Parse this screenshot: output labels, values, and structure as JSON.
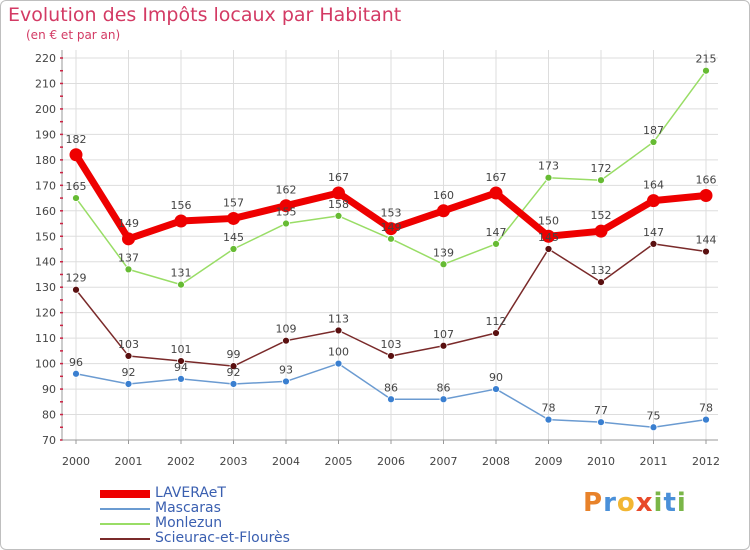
{
  "title": "Evolution des Impôts locaux par Habitant",
  "subtitle": "(en € et par an)",
  "logo": {
    "letters": [
      "P",
      "r",
      "o",
      "x",
      "i",
      "t",
      "i"
    ],
    "colors": [
      "#e8822a",
      "#4a90d9",
      "#f2b632",
      "#e84a2a",
      "#7ab648",
      "#4a90d9",
      "#7ab648"
    ]
  },
  "chart_data": {
    "type": "line",
    "title": "Evolution des Impôts locaux par Habitant",
    "subtitle": "(en € et par an)",
    "categories": [
      "2000",
      "2001",
      "2002",
      "2003",
      "2004",
      "2005",
      "2006",
      "2007",
      "2008",
      "2009",
      "2010",
      "2011",
      "2012"
    ],
    "ylim": [
      70,
      220
    ],
    "yticks": [
      70,
      80,
      90,
      100,
      110,
      120,
      130,
      140,
      150,
      160,
      170,
      180,
      190,
      200,
      210,
      220
    ],
    "xlabel": "",
    "ylabel": "",
    "grid": true,
    "legend_position": "bottom-left",
    "series": [
      {
        "name": "LAVERAeT",
        "color": "#ee0000",
        "markerColor": "#ee0000",
        "stroke": 7,
        "marker": 6.5,
        "values": [
          182,
          149,
          156,
          157,
          162,
          167,
          153,
          160,
          167,
          150,
          152,
          164,
          166
        ]
      },
      {
        "name": "Mascaras",
        "color": "#6b9bd1",
        "markerColor": "#3a7fd0",
        "stroke": 1.5,
        "marker": 3.5,
        "values": [
          96,
          92,
          94,
          92,
          93,
          100,
          86,
          86,
          90,
          78,
          77,
          75,
          78
        ]
      },
      {
        "name": "Monlezun",
        "color": "#99dd66",
        "markerColor": "#66bb33",
        "stroke": 1.5,
        "marker": 3.5,
        "values": [
          165,
          137,
          131,
          145,
          155,
          158,
          149,
          139,
          147,
          173,
          172,
          187,
          215
        ]
      },
      {
        "name": "Scieurac-et-Flourès",
        "color": "#7a2a2a",
        "markerColor": "#5a1010",
        "stroke": 1.5,
        "marker": 3.5,
        "values": [
          129,
          103,
          101,
          99,
          109,
          113,
          103,
          107,
          112,
          145,
          132,
          147,
          144
        ]
      }
    ]
  }
}
